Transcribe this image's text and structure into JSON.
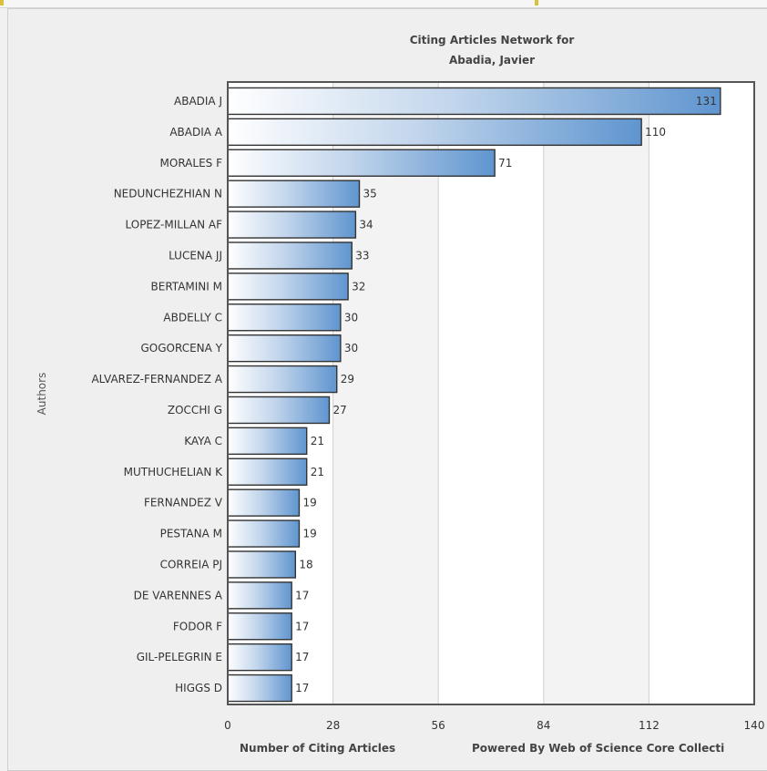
{
  "chart_data": {
    "type": "bar",
    "orientation": "horizontal",
    "title_lines": [
      "Citing Articles Network for",
      "Abadia, Javier"
    ],
    "xlabel": "Number of Citing Articles",
    "ylabel": "Authors",
    "footer": "Powered By Web of Science Core Collecti",
    "xlim": [
      0,
      140
    ],
    "xticks": [
      0,
      28,
      56,
      84,
      112,
      140
    ],
    "grid": true,
    "categories": [
      "ABADIA J",
      "ABADIA A",
      "MORALES F",
      "NEDUNCHEZHIAN N",
      "LOPEZ-MILLAN AF",
      "LUCENA JJ",
      "BERTAMINI M",
      "ABDELLY C",
      "GOGORCENA Y",
      "ALVAREZ-FERNANDEZ A",
      "ZOCCHI G",
      "KAYA C",
      "MUTHUCHELIAN K",
      "FERNANDEZ V",
      "PESTANA M",
      "CORREIA PJ",
      "DE VARENNES A",
      "FODOR F",
      "GIL-PELEGRIN E",
      "HIGGS D"
    ],
    "values": [
      131,
      110,
      71,
      35,
      34,
      33,
      32,
      30,
      30,
      29,
      27,
      21,
      21,
      19,
      19,
      18,
      17,
      17,
      17,
      17
    ],
    "bar_color": "#6a9fd4"
  }
}
